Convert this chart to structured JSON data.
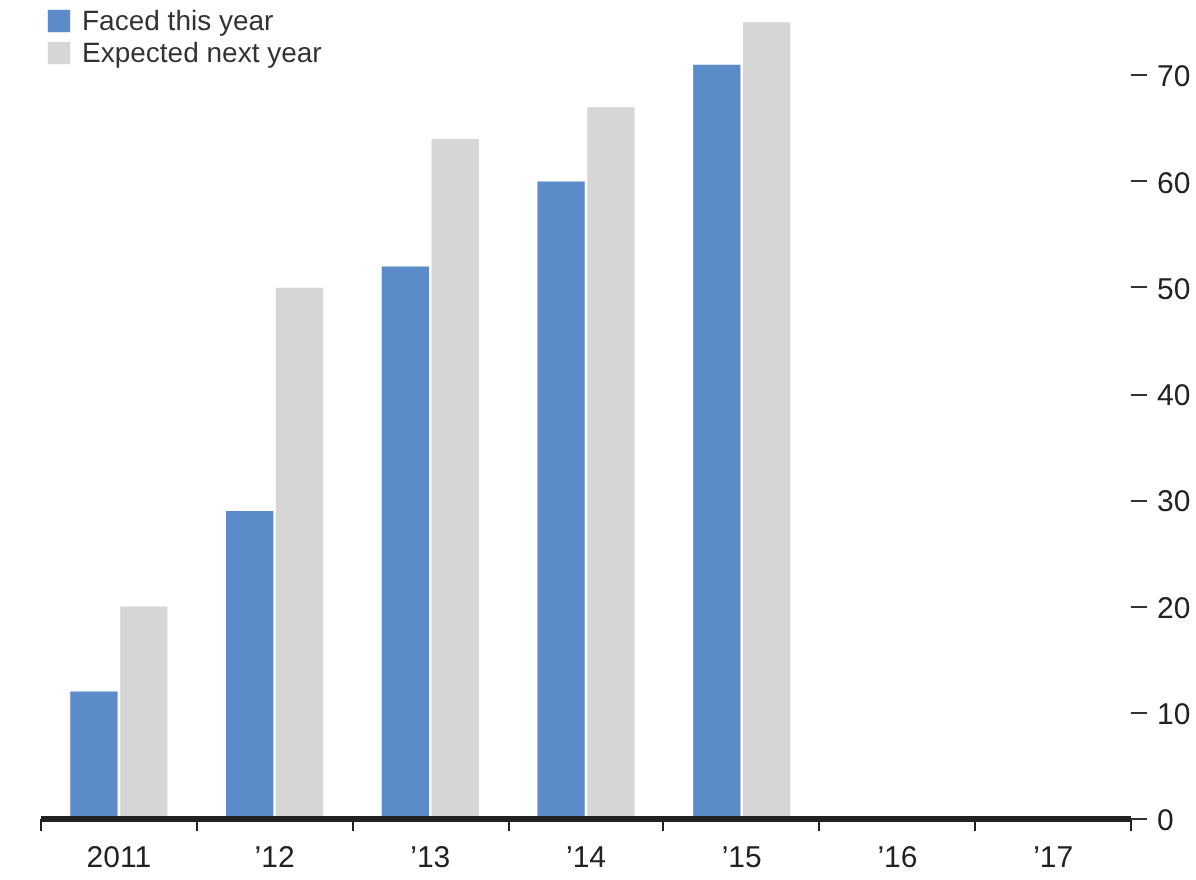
{
  "chart_data": {
    "type": "bar",
    "categories": [
      "2011",
      "’12",
      "’13",
      "’14",
      "’15",
      "’16",
      "’17"
    ],
    "series": [
      {
        "name": "Faced this year",
        "color": "#5b8bc9",
        "values": [
          12,
          29,
          52,
          60,
          71,
          null,
          null
        ]
      },
      {
        "name": "Expected next year",
        "color": "#d6d6d6",
        "values": [
          20,
          50,
          64,
          67,
          75,
          null,
          null
        ]
      }
    ],
    "ylim": [
      0,
      77
    ],
    "yticks": [
      0,
      10,
      20,
      30,
      40,
      50,
      60,
      70
    ],
    "grid": false,
    "legend": "top left"
  }
}
